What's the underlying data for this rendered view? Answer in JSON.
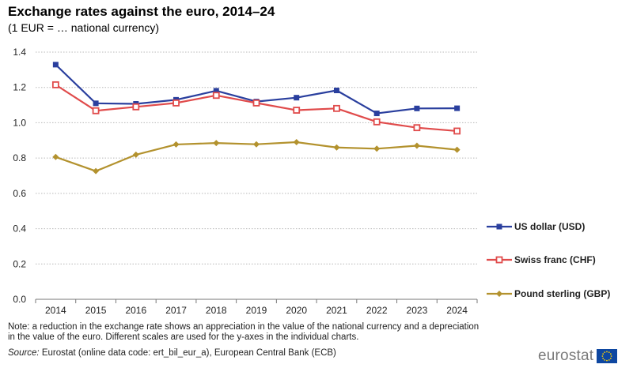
{
  "title": "Exchange rates against the euro, 2014–24",
  "subtitle": "(1 EUR = … national currency)",
  "note": "Note: a reduction in the exchange rate shows an appreciation in the value of the national currency and a depreciation in the value of the euro. Different scales are used for the y-axes in the individual charts.",
  "source_label": "Source:",
  "source_text": "Eurostat (online data code: ert_bil_eur_a), European Central Bank (ECB)",
  "logo_text": "eurostat",
  "chart_data": {
    "type": "line",
    "title": "Exchange rates against the euro, 2014–24",
    "xlabel": "",
    "ylabel": "",
    "ylim": [
      0,
      1.4
    ],
    "yticks": [
      0,
      0.2,
      0.4,
      0.6,
      0.8,
      1.0,
      1.2,
      1.4
    ],
    "ytick_labels": [
      "0.0",
      "0.2",
      "0.4",
      "0.6",
      "0.8",
      "1.0",
      "1.2",
      "1.4"
    ],
    "grid": "horizontal dotted",
    "legend_position": "right",
    "categories": [
      "2014",
      "2015",
      "2016",
      "2017",
      "2018",
      "2019",
      "2020",
      "2021",
      "2022",
      "2023",
      "2024"
    ],
    "series": [
      {
        "name": "US dollar (USD)",
        "color": "#2a3f9e",
        "marker": "filled-square",
        "values": [
          1.329,
          1.11,
          1.107,
          1.13,
          1.181,
          1.12,
          1.142,
          1.183,
          1.053,
          1.081,
          1.082
        ]
      },
      {
        "name": "Swiss franc (CHF)",
        "color": "#e04b4b",
        "marker": "hollow-square",
        "values": [
          1.215,
          1.068,
          1.09,
          1.112,
          1.155,
          1.112,
          1.071,
          1.081,
          1.005,
          0.972,
          0.953
        ]
      },
      {
        "name": "Pound sterling (GBP)",
        "color": "#b3922e",
        "marker": "diamond",
        "values": [
          0.806,
          0.726,
          0.819,
          0.877,
          0.885,
          0.878,
          0.89,
          0.86,
          0.853,
          0.87,
          0.847
        ]
      }
    ]
  }
}
